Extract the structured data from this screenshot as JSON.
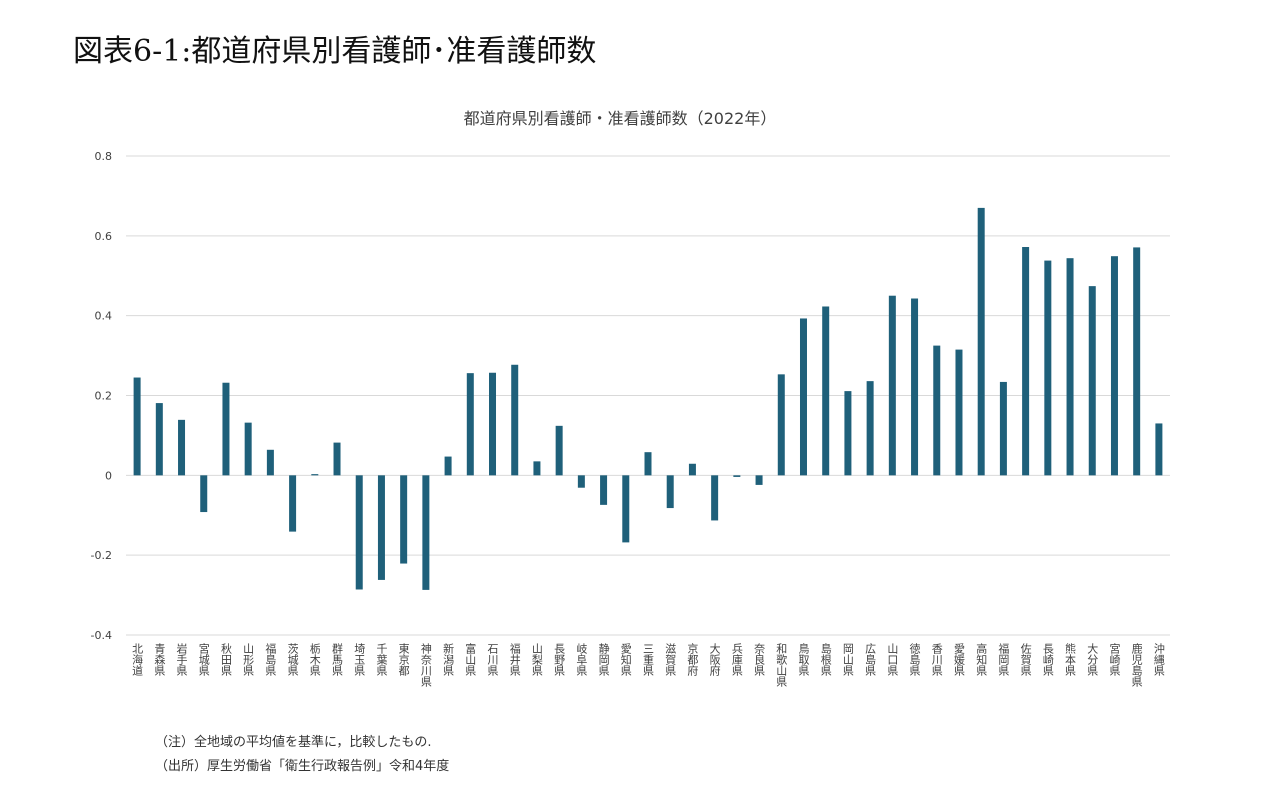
{
  "page_title": "図表6-1:都道府県別看護師･准看護師数",
  "notes": {
    "note": "（注）全地域の平均値を基準に，比較したもの.",
    "source": "（出所）厚生労働省「衛生行政報告例」令和4年度"
  },
  "colors": {
    "bar": "#1f607a",
    "grid": "#d9d9d9",
    "text": "#404040"
  },
  "chart_data": {
    "type": "bar",
    "title": "都道府県別看護師・准看護師数（2022年）",
    "xlabel": "",
    "ylabel": "",
    "ylim": [
      -0.4,
      0.8
    ],
    "yticks": [
      {
        "value": 0.8,
        "label": "0.8"
      },
      {
        "value": 0.6,
        "label": "0.6"
      },
      {
        "value": 0.4,
        "label": "0.4"
      },
      {
        "value": 0.2,
        "label": "0.2"
      },
      {
        "value": 0,
        "label": "0"
      },
      {
        "value": -0.2,
        "label": "-0.2"
      },
      {
        "value": -0.4,
        "label": "-0.4"
      }
    ],
    "grid": true,
    "categories": [
      "北海道",
      "青森県",
      "岩手県",
      "宮城県",
      "秋田県",
      "山形県",
      "福島県",
      "茨城県",
      "栃木県",
      "群馬県",
      "埼玉県",
      "千葉県",
      "東京都",
      "神奈川県",
      "新潟県",
      "富山県",
      "石川県",
      "福井県",
      "山梨県",
      "長野県",
      "岐阜県",
      "静岡県",
      "愛知県",
      "三重県",
      "滋賀県",
      "京都府",
      "大阪府",
      "兵庫県",
      "奈良県",
      "和歌山県",
      "鳥取県",
      "島根県",
      "岡山県",
      "広島県",
      "山口県",
      "徳島県",
      "香川県",
      "愛媛県",
      "高知県",
      "福岡県",
      "佐賀県",
      "長崎県",
      "熊本県",
      "大分県",
      "宮崎県",
      "鹿児島県",
      "沖縄県"
    ],
    "values": [
      0.245,
      0.181,
      0.139,
      -0.092,
      0.232,
      0.132,
      0.064,
      -0.141,
      0.003,
      0.082,
      -0.286,
      -0.262,
      -0.221,
      -0.287,
      0.047,
      0.256,
      0.257,
      0.277,
      0.035,
      0.124,
      -0.031,
      -0.074,
      -0.168,
      0.058,
      -0.082,
      0.029,
      -0.113,
      -0.004,
      -0.024,
      0.253,
      0.393,
      0.423,
      0.211,
      0.236,
      0.45,
      0.443,
      0.325,
      0.315,
      0.67,
      0.234,
      0.572,
      0.538,
      0.544,
      0.474,
      0.549,
      0.571,
      0.13
    ]
  }
}
